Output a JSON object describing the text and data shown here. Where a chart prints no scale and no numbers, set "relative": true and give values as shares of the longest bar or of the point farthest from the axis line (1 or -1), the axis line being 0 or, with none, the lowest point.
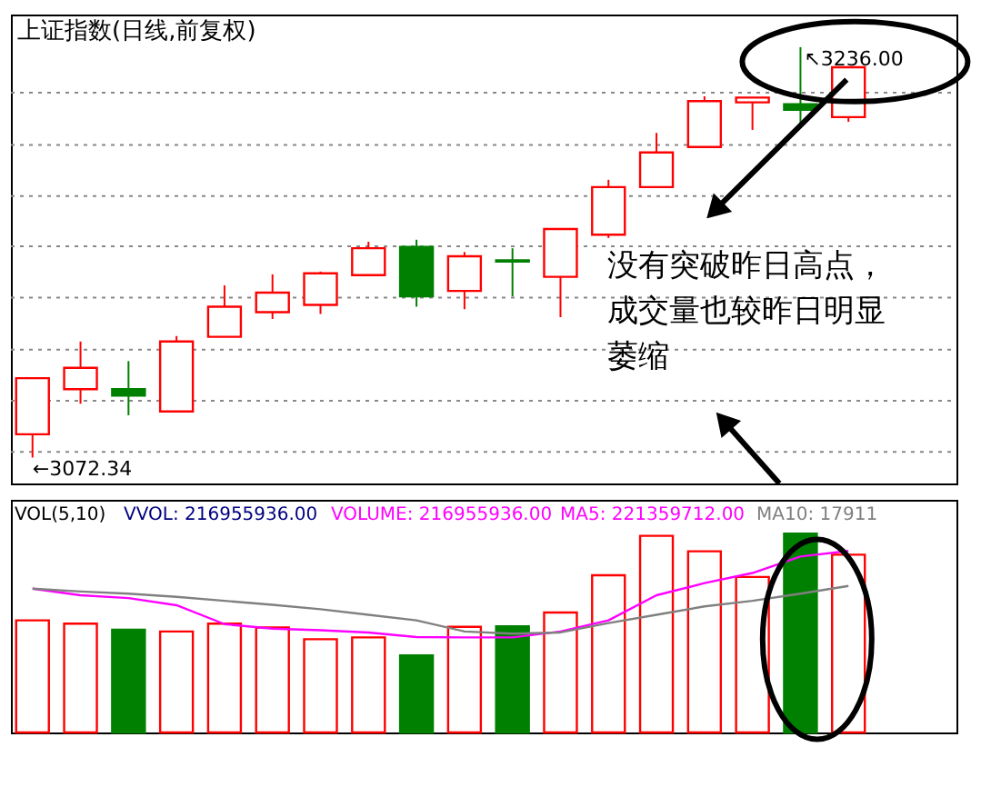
{
  "chart_data": [
    {
      "type": "candlestick",
      "title": "上证指数(日线,前复权)",
      "categories": [
        null,
        null,
        null,
        null,
        null,
        null,
        null,
        null,
        null,
        null,
        null,
        null,
        null,
        null,
        null,
        null,
        null,
        null
      ],
      "ohlc": [
        [
          3081.6,
          3104.0,
          3072.34,
          3104.0
        ],
        [
          3099.6,
          3118.6,
          3093.8,
          3108.1
        ],
        [
          3099.6,
          3110.8,
          3089.2,
          3097.0
        ],
        [
          3090.7,
          3120.8,
          3090.7,
          3118.6
        ],
        [
          3120.5,
          3141.0,
          3120.5,
          3132.5
        ],
        [
          3130.3,
          3145.4,
          3127.6,
          3138.1
        ],
        [
          3133.2,
          3146.5,
          3129.6,
          3145.8
        ],
        [
          3145.1,
          3158.4,
          3145.1,
          3155.8
        ],
        [
          3156.3,
          3159.2,
          3132.5,
          3136.6
        ],
        [
          3138.8,
          3154.3,
          3131.5,
          3152.6
        ],
        [
          3151.0,
          3155.8,
          3136.6,
          3150.5
        ],
        [
          3144.4,
          3163.5,
          3128.3,
          3163.5
        ],
        [
          3161.2,
          3183.1,
          3159.9,
          3180.2
        ],
        [
          3180.2,
          3201.8,
          3180.2,
          3194.0
        ],
        [
          3196.2,
          3216.4,
          3196.2,
          3214.5
        ],
        [
          3214.0,
          3215.9,
          3203.0,
          3215.9
        ],
        [
          3213.2,
          3236.0,
          3204.5,
          3211.0
        ],
        [
          3208.1,
          3228.0,
          3206.2,
          3228.0
        ]
      ],
      "colors": [
        "#ff0000",
        "#ff0000",
        "#008000",
        "#ff0000",
        "#ff0000",
        "#ff0000",
        "#ff0000",
        "#ff0000",
        "#008000",
        "#ff0000",
        "#008000",
        "#ff0000",
        "#ff0000",
        "#ff0000",
        "#ff0000",
        "#ff0000",
        "#008000",
        "#ff0000"
      ],
      "ylim": [
        3062,
        3249
      ],
      "yticks": [
        {
          "value": 3074.6,
          "label": null
        },
        {
          "value": 3095.0,
          "label": null
        },
        {
          "value": 3115.4,
          "label": null
        },
        {
          "value": 3136.1,
          "label": null
        },
        {
          "value": 3156.6,
          "label": null
        },
        {
          "value": 3176.6,
          "label": null
        },
        {
          "value": 3197.0,
          "label": null
        },
        {
          "value": 3217.8,
          "label": null
        }
      ],
      "grid": "y",
      "tick_labels": false,
      "annotations": [
        "↖3236.00",
        "←3072.34",
        "没有突破昨日高点，成交量也较昨日明显萎缩"
      ]
    },
    {
      "type": "bar",
      "relative": true,
      "legend": "top",
      "tick_labels": false,
      "categories": [
        null,
        null,
        null,
        null,
        null,
        null,
        null,
        null,
        null,
        null,
        null,
        null,
        null,
        null,
        null,
        null,
        null,
        null
      ],
      "annotations": [
        "VOL(5,10)",
        "VVOL: 216955936.00",
        "VOLUME: 216955936.00"
      ],
      "series": [
        {
          "type": "bar",
          "color": "#ff0000",
          "colors": [
            "#ff0000",
            "#ff0000",
            "#008000",
            "#ff0000",
            "#ff0000",
            "#ff0000",
            "#ff0000",
            "#ff0000",
            "#008000",
            "#ff0000",
            "#008000",
            "#ff0000",
            "#ff0000",
            "#ff0000",
            "#ff0000",
            "#ff0000",
            "#008000",
            "#ff0000"
          ],
          "values": [
            0.564,
            0.547,
            0.517,
            0.508,
            0.547,
            0.528,
            0.469,
            0.478,
            0.388,
            0.531,
            0.534,
            0.603,
            0.791,
            0.989,
            0.911,
            0.782,
            1.0,
            0.894
          ]
        },
        {
          "name": "MA5: 221359712.00",
          "type": "line",
          "color": "#ff00ff",
          "values": [
            0.723,
            0.69,
            0.676,
            0.64,
            0.545,
            0.522,
            0.514,
            0.503,
            0.48,
            0.478,
            0.478,
            0.508,
            0.564,
            0.69,
            0.751,
            0.802,
            0.885,
            0.913
          ]
        },
        {
          "name": "MA10: 17911",
          "type": "line",
          "color": "#808080",
          "values": [
            0.723,
            0.709,
            0.698,
            0.682,
            0.662,
            0.642,
            0.62,
            0.592,
            0.564,
            0.508,
            0.497,
            0.503,
            0.55,
            0.592,
            0.634,
            0.662,
            0.698,
            0.737
          ]
        }
      ]
    }
  ]
}
